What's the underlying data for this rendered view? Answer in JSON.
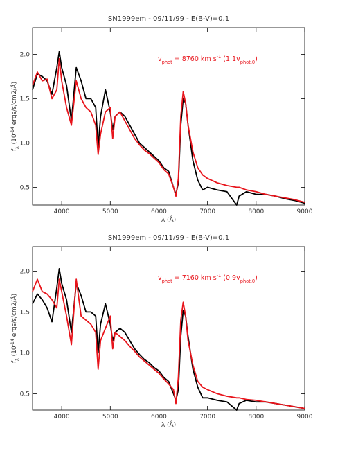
{
  "chart_data": [
    {
      "type": "line",
      "title": "SN1999em - 09/11/99 - E(B-V)=0.1",
      "xlabel": [
        "λ (Å)"
      ],
      "ylabel": [
        "f",
        "λ",
        " (10",
        "-14",
        " ergs/s/cm2/Å)"
      ],
      "annotation": [
        "v",
        "phot",
        " = 8760 km s",
        "-1",
        " (1.1v",
        "phot,0",
        ")"
      ],
      "xlim": [
        3400,
        9000
      ],
      "ylim": [
        0.3,
        2.3
      ],
      "xticks": [
        4000,
        5000,
        6000,
        7000,
        8000,
        9000
      ],
      "yticks": [
        {
          "value": 0.5,
          "label": "0.5"
        },
        {
          "value": 1.0,
          "label": "1.0"
        },
        {
          "value": 1.5,
          "label": "1.5"
        },
        {
          "value": 2.0,
          "label": "2.0"
        }
      ],
      "x": [
        3400,
        3500,
        3600,
        3700,
        3800,
        3900,
        3950,
        4000,
        4100,
        4200,
        4300,
        4400,
        4500,
        4600,
        4700,
        4750,
        4800,
        4900,
        5000,
        5050,
        5100,
        5200,
        5300,
        5400,
        5500,
        5600,
        5700,
        5800,
        5900,
        6000,
        6100,
        6200,
        6300,
        6350,
        6400,
        6450,
        6500,
        6550,
        6600,
        6700,
        6800,
        6900,
        7000,
        7200,
        7400,
        7600,
        7650,
        7800,
        8000,
        8200,
        8400,
        8600,
        8800,
        9000
      ],
      "series": [
        {
          "color": "#000000",
          "values": [
            1.6,
            1.78,
            1.75,
            1.7,
            1.55,
            1.85,
            2.03,
            1.85,
            1.65,
            1.25,
            1.85,
            1.7,
            1.5,
            1.5,
            1.4,
            0.95,
            1.3,
            1.6,
            1.35,
            1.15,
            1.3,
            1.35,
            1.3,
            1.2,
            1.1,
            1.0,
            0.95,
            0.9,
            0.85,
            0.8,
            0.72,
            0.68,
            0.5,
            0.42,
            0.55,
            1.2,
            1.5,
            1.45,
            1.2,
            0.8,
            0.58,
            0.47,
            0.5,
            0.47,
            0.45,
            0.3,
            0.4,
            0.45,
            0.42,
            0.42,
            0.4,
            0.37,
            0.35,
            0.32
          ]
        },
        {
          "color": "#e8141b",
          "values": [
            1.65,
            1.8,
            1.7,
            1.72,
            1.5,
            1.6,
            1.95,
            1.7,
            1.4,
            1.2,
            1.7,
            1.5,
            1.4,
            1.35,
            1.2,
            0.87,
            1.1,
            1.35,
            1.4,
            1.05,
            1.3,
            1.35,
            1.25,
            1.15,
            1.05,
            0.98,
            0.92,
            0.88,
            0.83,
            0.78,
            0.7,
            0.65,
            0.5,
            0.4,
            0.6,
            1.3,
            1.58,
            1.45,
            1.2,
            0.9,
            0.72,
            0.64,
            0.6,
            0.55,
            0.52,
            0.5,
            0.5,
            0.47,
            0.45,
            0.42,
            0.4,
            0.38,
            0.36,
            0.33
          ]
        }
      ]
    },
    {
      "type": "line",
      "title": "SN1999em - 09/11/99 - E(B-V)=0.1",
      "xlabel": [
        "λ (Å)"
      ],
      "ylabel": [
        "f",
        "λ",
        " (10",
        "-14",
        " ergs/s/cm2/Å)"
      ],
      "annotation": [
        "v",
        "phot",
        " = 7160 km s",
        "-1",
        " (0.9v",
        "phot,0",
        ")"
      ],
      "xlim": [
        3400,
        9000
      ],
      "ylim": [
        0.3,
        2.3
      ],
      "xticks": [
        4000,
        5000,
        6000,
        7000,
        8000,
        9000
      ],
      "yticks": [
        {
          "value": 0.5,
          "label": "0.5"
        },
        {
          "value": 1.0,
          "label": "1.0"
        },
        {
          "value": 1.5,
          "label": "1.5"
        },
        {
          "value": 2.0,
          "label": "2.0"
        }
      ],
      "x": [
        3400,
        3500,
        3600,
        3700,
        3800,
        3900,
        3950,
        4000,
        4100,
        4200,
        4300,
        4400,
        4500,
        4600,
        4700,
        4750,
        4800,
        4900,
        5000,
        5050,
        5100,
        5200,
        5300,
        5400,
        5500,
        5600,
        5700,
        5800,
        5900,
        6000,
        6100,
        6200,
        6300,
        6350,
        6400,
        6450,
        6500,
        6550,
        6600,
        6700,
        6800,
        6900,
        7000,
        7200,
        7400,
        7600,
        7650,
        7800,
        8000,
        8200,
        8400,
        8600,
        8800,
        9000
      ],
      "series": [
        {
          "color": "#000000",
          "values": [
            1.6,
            1.72,
            1.65,
            1.55,
            1.38,
            1.8,
            2.03,
            1.85,
            1.65,
            1.25,
            1.85,
            1.7,
            1.5,
            1.5,
            1.45,
            1.0,
            1.35,
            1.6,
            1.35,
            1.15,
            1.25,
            1.3,
            1.25,
            1.15,
            1.05,
            0.98,
            0.92,
            0.88,
            0.82,
            0.78,
            0.7,
            0.65,
            0.5,
            0.42,
            0.55,
            1.2,
            1.52,
            1.45,
            1.2,
            0.8,
            0.58,
            0.45,
            0.45,
            0.42,
            0.4,
            0.3,
            0.38,
            0.42,
            0.4,
            0.4,
            0.38,
            0.36,
            0.34,
            0.32
          ]
        },
        {
          "color": "#e8141b",
          "values": [
            1.75,
            1.9,
            1.75,
            1.72,
            1.65,
            1.55,
            1.9,
            1.75,
            1.45,
            1.1,
            1.9,
            1.45,
            1.4,
            1.35,
            1.25,
            0.8,
            1.15,
            1.3,
            1.45,
            1.05,
            1.25,
            1.2,
            1.15,
            1.08,
            1.02,
            0.95,
            0.9,
            0.85,
            0.8,
            0.75,
            0.68,
            0.62,
            0.55,
            0.38,
            0.7,
            1.4,
            1.62,
            1.45,
            1.15,
            0.85,
            0.65,
            0.58,
            0.55,
            0.5,
            0.47,
            0.45,
            0.45,
            0.43,
            0.42,
            0.4,
            0.38,
            0.36,
            0.34,
            0.32
          ]
        }
      ]
    }
  ]
}
